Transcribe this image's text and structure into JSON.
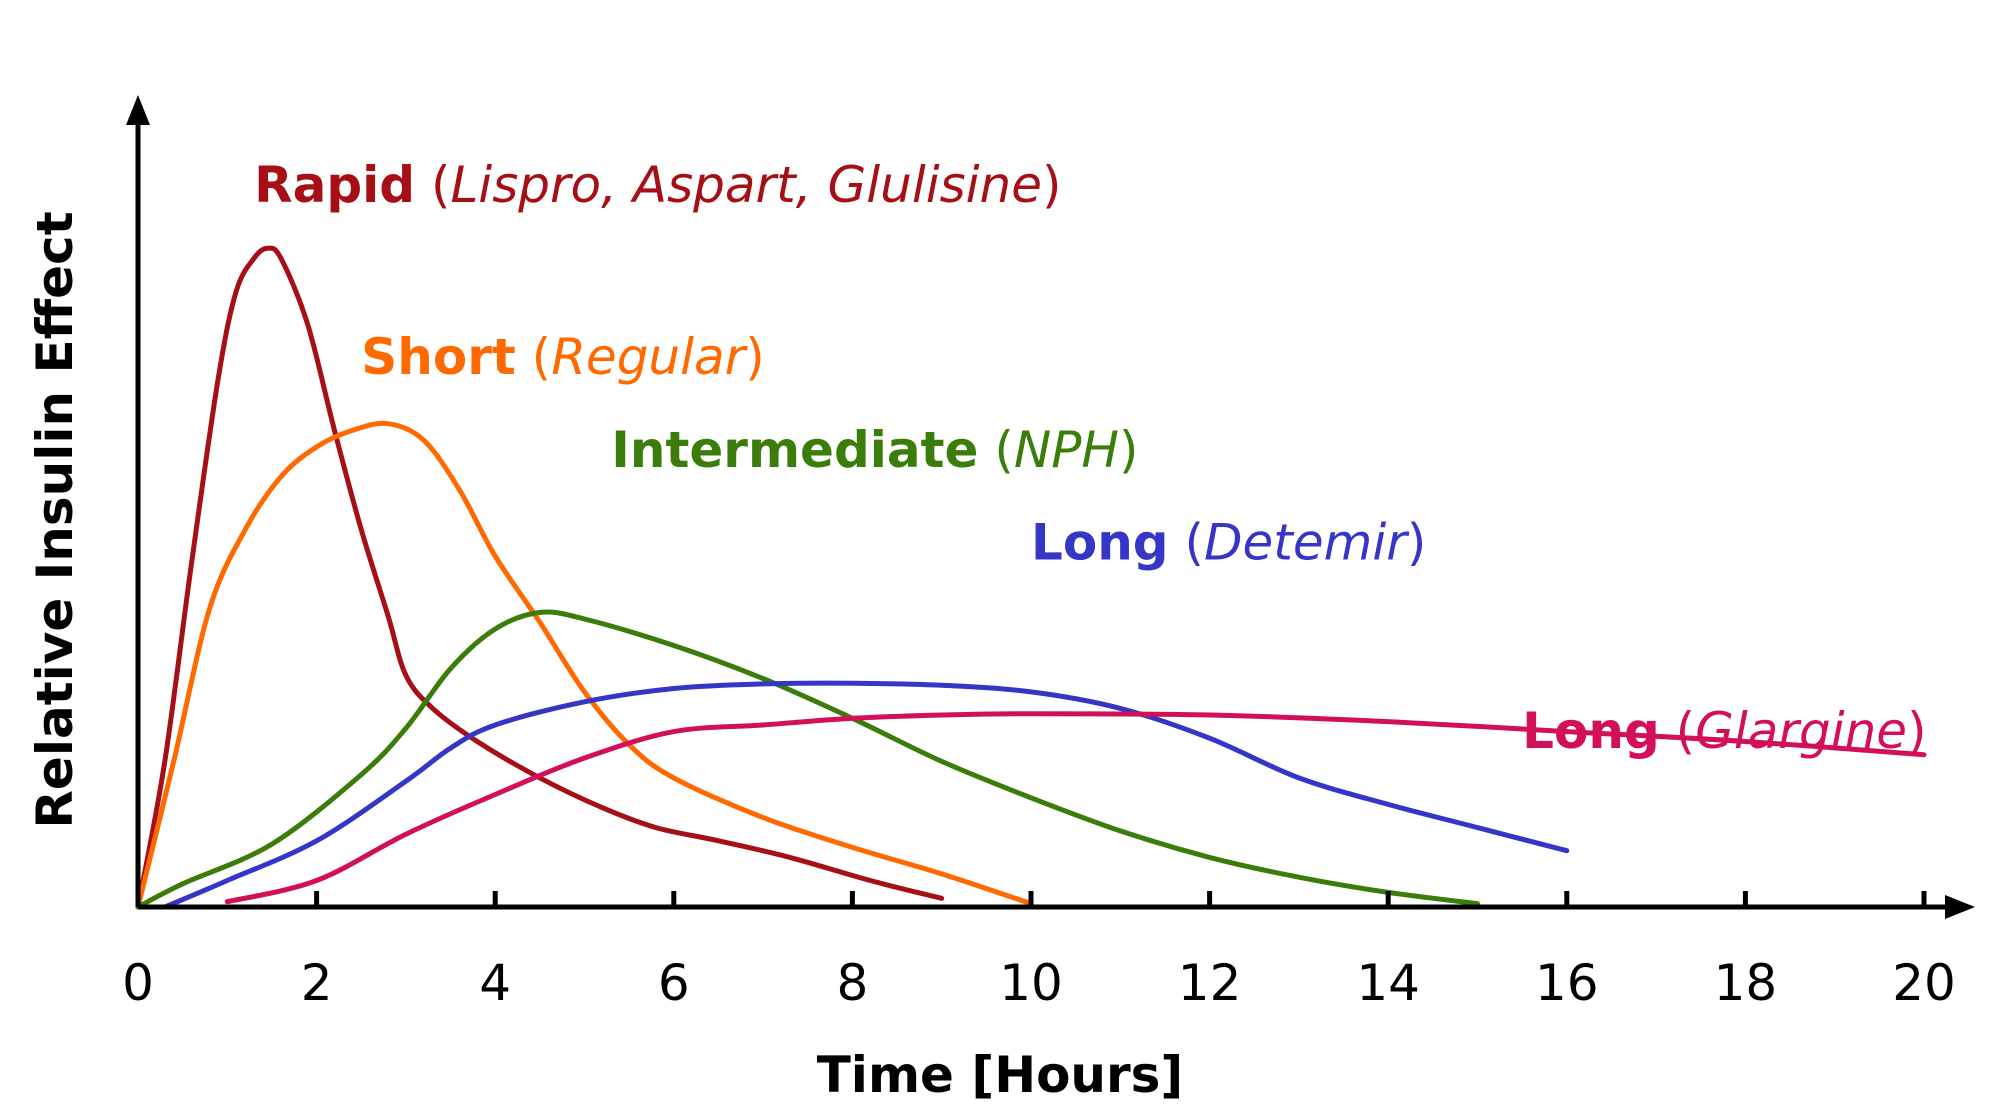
{
  "chart_data": {
    "type": "line",
    "title": "",
    "xlabel": "Time [Hours]",
    "ylabel": "Relative Insulin Effect",
    "xlim": [
      0,
      20
    ],
    "ylim": [
      0,
      100
    ],
    "xticks": [
      0,
      2,
      4,
      6,
      8,
      10,
      12,
      14,
      16,
      18,
      20
    ],
    "grid": false,
    "legend": "inline labels",
    "series": [
      {
        "name": "Rapid",
        "drugs": "Lispro, Aspart, Glulisine",
        "color": "#a50f15",
        "points": [
          [
            0,
            0
          ],
          [
            0.3,
            22
          ],
          [
            0.6,
            52
          ],
          [
            0.9,
            80
          ],
          [
            1.1,
            93
          ],
          [
            1.3,
            98
          ],
          [
            1.45,
            99.5
          ],
          [
            1.6,
            98
          ],
          [
            1.9,
            88
          ],
          [
            2.2,
            72
          ],
          [
            2.5,
            57
          ],
          [
            2.8,
            44
          ],
          [
            3.0,
            35
          ],
          [
            3.3,
            30
          ],
          [
            3.8,
            25
          ],
          [
            4.5,
            19.5
          ],
          [
            5.2,
            15
          ],
          [
            5.8,
            12
          ],
          [
            6.5,
            10
          ],
          [
            7.3,
            7.5
          ],
          [
            8.2,
            4
          ],
          [
            9.0,
            1.3
          ]
        ]
      },
      {
        "name": "Short",
        "drugs": "Regular",
        "color": "#ff6a00",
        "points": [
          [
            0,
            0
          ],
          [
            0.4,
            22
          ],
          [
            0.8,
            45
          ],
          [
            1.2,
            57
          ],
          [
            1.6,
            65
          ],
          [
            2.0,
            69.5
          ],
          [
            2.4,
            72
          ],
          [
            2.8,
            73
          ],
          [
            3.2,
            70.5
          ],
          [
            3.6,
            63
          ],
          [
            4.0,
            53
          ],
          [
            4.5,
            43
          ],
          [
            5.0,
            32.5
          ],
          [
            5.5,
            24.5
          ],
          [
            6.0,
            19.5
          ],
          [
            7.0,
            13.5
          ],
          [
            8.0,
            9
          ],
          [
            9.0,
            5
          ],
          [
            10.0,
            0.5
          ]
        ]
      },
      {
        "name": "Intermediate",
        "drugs": "NPH",
        "color": "#3a7d0a",
        "points": [
          [
            0,
            0
          ],
          [
            0.5,
            3.5
          ],
          [
            1.5,
            9.5
          ],
          [
            2.5,
            20
          ],
          [
            3.0,
            27
          ],
          [
            3.5,
            36
          ],
          [
            4.0,
            42
          ],
          [
            4.5,
            44.5
          ],
          [
            5.0,
            43.5
          ],
          [
            6.0,
            39.5
          ],
          [
            7.0,
            34.5
          ],
          [
            8.0,
            28.5
          ],
          [
            9.0,
            22
          ],
          [
            10.0,
            16.5
          ],
          [
            11.0,
            11.5
          ],
          [
            12.0,
            7.5
          ],
          [
            13.0,
            4.5
          ],
          [
            14.0,
            2.2
          ],
          [
            15.0,
            0.5
          ]
        ]
      },
      {
        "name": "Long",
        "drugs": "Detemir",
        "color": "#3535c8",
        "points": [
          [
            0.3,
            0
          ],
          [
            1.0,
            4
          ],
          [
            2.0,
            10
          ],
          [
            3.0,
            19
          ],
          [
            3.5,
            24
          ],
          [
            4.0,
            27.5
          ],
          [
            5.0,
            31
          ],
          [
            6.0,
            33
          ],
          [
            7.0,
            33.7
          ],
          [
            8.0,
            33.8
          ],
          [
            9.0,
            33.5
          ],
          [
            10.0,
            32.5
          ],
          [
            11.0,
            30
          ],
          [
            12.0,
            25.5
          ],
          [
            13.0,
            19.5
          ],
          [
            14.0,
            15.5
          ],
          [
            15.0,
            12
          ],
          [
            16.0,
            8.5
          ]
        ]
      },
      {
        "name": "Long",
        "drugs": "Glargine",
        "color": "#d2105a",
        "points": [
          [
            1.0,
            0.8
          ],
          [
            2.0,
            4
          ],
          [
            3.0,
            11
          ],
          [
            4.0,
            17
          ],
          [
            5.0,
            22.5
          ],
          [
            6.0,
            26.5
          ],
          [
            7.0,
            27.5
          ],
          [
            8.0,
            28.5
          ],
          [
            9.0,
            29
          ],
          [
            10.0,
            29.2
          ],
          [
            12.0,
            29
          ],
          [
            14.0,
            28
          ],
          [
            16.0,
            26.5
          ],
          [
            18.0,
            25
          ],
          [
            20.0,
            23
          ]
        ]
      }
    ],
    "labels": [
      {
        "name": "Rapid",
        "open": " (",
        "drugs": "Lispro, Aspart, Glulisine",
        "close": ")",
        "x": 1.3,
        "y": 106.5
      },
      {
        "name": "Short",
        "open": " (",
        "drugs": "Regular",
        "close": ")",
        "x": 2.5,
        "y": 80.5
      },
      {
        "name": "Intermediate",
        "open": " (",
        "drugs": "NPH",
        "close": ")",
        "x": 5.3,
        "y": 66.5
      },
      {
        "name": "Long",
        "open": " (",
        "drugs": "Detemir",
        "close": ")",
        "x": 10.0,
        "y": 52.5
      },
      {
        "name": "Long",
        "open": " (",
        "drugs": "Glargine",
        "close": ")",
        "x": 15.5,
        "y": 24.0
      }
    ]
  }
}
